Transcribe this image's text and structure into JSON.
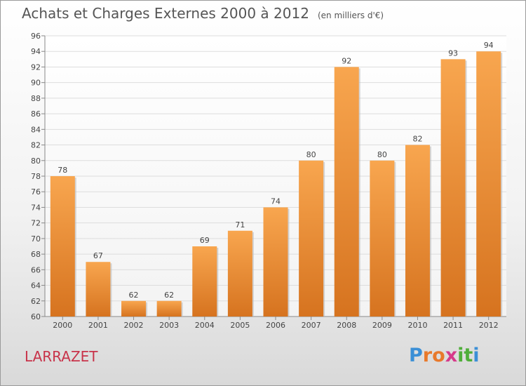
{
  "chart_data": {
    "type": "bar",
    "title": "Achats et Charges Externes 2000 à 2012",
    "subtitle": "(en milliers d'€)",
    "categories": [
      "2000",
      "2001",
      "2002",
      "2003",
      "2004",
      "2005",
      "2006",
      "2007",
      "2008",
      "2009",
      "2010",
      "2011",
      "2012"
    ],
    "values": [
      78,
      67,
      62,
      62,
      69,
      71,
      74,
      80,
      92,
      80,
      82,
      93,
      94
    ],
    "ylim": [
      60,
      96
    ],
    "yticks": [
      60,
      62,
      64,
      66,
      68,
      70,
      72,
      74,
      76,
      78,
      80,
      82,
      84,
      86,
      88,
      90,
      92,
      94,
      96
    ],
    "grid": true,
    "xlabel": "",
    "ylabel": ""
  },
  "commune": "LARRAZET",
  "logo": {
    "text": "Proxiti",
    "letters": [
      "P",
      "r",
      "o",
      "x",
      "i",
      "t",
      "i"
    ],
    "colors": [
      "#3b8fd6",
      "#e8792b",
      "#e8792b",
      "#d63a8a",
      "#4fae3a",
      "#4fae3a",
      "#3b8fd6"
    ]
  },
  "colors": {
    "bar_light": "#f8a64f",
    "bar_dark": "#d6731f",
    "text": "#555555",
    "grid": "#dddddd"
  }
}
